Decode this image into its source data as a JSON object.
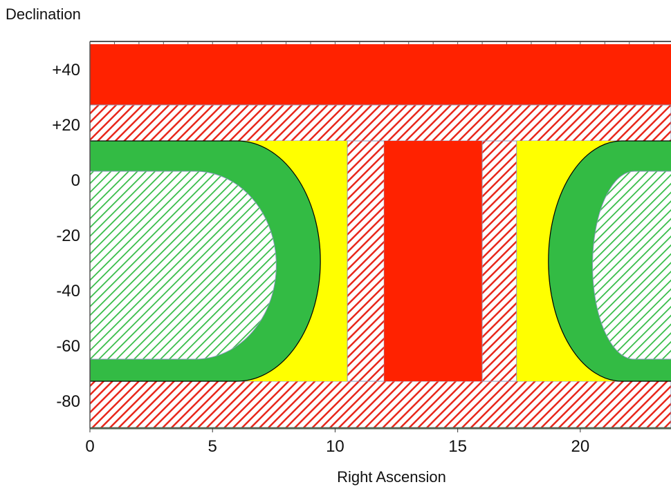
{
  "chart_data": {
    "type": "area",
    "xlabel": "Right Ascension",
    "ylabel": "Declination",
    "xlim": [
      0,
      23.7
    ],
    "ylim": [
      -90,
      50
    ],
    "x_ticks": [
      {
        "value": 0,
        "label": "0"
      },
      {
        "value": 5,
        "label": "5"
      },
      {
        "value": 10,
        "label": "10"
      },
      {
        "value": 15,
        "label": "15"
      },
      {
        "value": 20,
        "label": "20"
      }
    ],
    "y_ticks": [
      {
        "value": 40,
        "label": "+40"
      },
      {
        "value": 20,
        "label": "+20"
      },
      {
        "value": 0,
        "label": "0"
      },
      {
        "value": -20,
        "label": "-20"
      },
      {
        "value": -40,
        "label": "-40"
      },
      {
        "value": -60,
        "label": "-60"
      },
      {
        "value": -80,
        "label": "-80"
      }
    ],
    "regions": [
      {
        "id": "top-solid-band",
        "fill": "#ff2200",
        "x": [
          0,
          23.7
        ],
        "y": [
          27,
          49
        ]
      },
      {
        "id": "top-hatched-band",
        "fill": "hatch-red",
        "x": [
          0,
          23.7
        ],
        "y": [
          14,
          27
        ]
      },
      {
        "id": "bottom-hatched-band",
        "fill": "hatch-red",
        "x": [
          0,
          23.7
        ],
        "y": [
          -90,
          -73
        ]
      },
      {
        "id": "yellow-left",
        "fill": "#ffff00",
        "x": [
          0,
          10.5
        ],
        "y": [
          -73,
          14
        ]
      },
      {
        "id": "yellow-right",
        "fill": "#ffff00",
        "x": [
          17.4,
          23.7
        ],
        "y": [
          -73,
          14
        ]
      },
      {
        "id": "hatched-strip-left",
        "fill": "hatch-red",
        "x": [
          10.5,
          12
        ],
        "y": [
          -73,
          14
        ]
      },
      {
        "id": "center-solid-block",
        "fill": "#ff2200",
        "x": [
          12,
          16
        ],
        "y": [
          -73,
          14
        ]
      },
      {
        "id": "hatched-strip-right",
        "fill": "hatch-red",
        "x": [
          16,
          17.4
        ],
        "y": [
          -73,
          14
        ]
      },
      {
        "id": "green-left",
        "fill": "#33bb44",
        "shape": "half-disc-right",
        "x": [
          0,
          9.4
        ],
        "y": [
          -73,
          14
        ],
        "flat_until_x": 6
      },
      {
        "id": "green-right",
        "fill": "#33bb44",
        "shape": "half-disc-left",
        "x": [
          18.7,
          23.7
        ],
        "y": [
          -73,
          14
        ],
        "flat_from_x": 21.7
      },
      {
        "id": "green-hatched-left",
        "fill": "hatch-green",
        "shape": "half-disc-right",
        "x": [
          0,
          7.6
        ],
        "y": [
          -65,
          3
        ],
        "flat_until_x": 4.3
      },
      {
        "id": "green-hatched-right",
        "fill": "hatch-green",
        "shape": "half-disc-left",
        "x": [
          20.5,
          23.7
        ],
        "y": [
          -65,
          3
        ],
        "flat_from_x": 22.2
      }
    ],
    "colors": {
      "red": "#ff2200",
      "yellow": "#ffff00",
      "green": "#33bb44",
      "hatch_red": "#e8261a",
      "hatch_green": "#33bb44",
      "outline": "#000000",
      "region_border": "#8899bb"
    }
  }
}
